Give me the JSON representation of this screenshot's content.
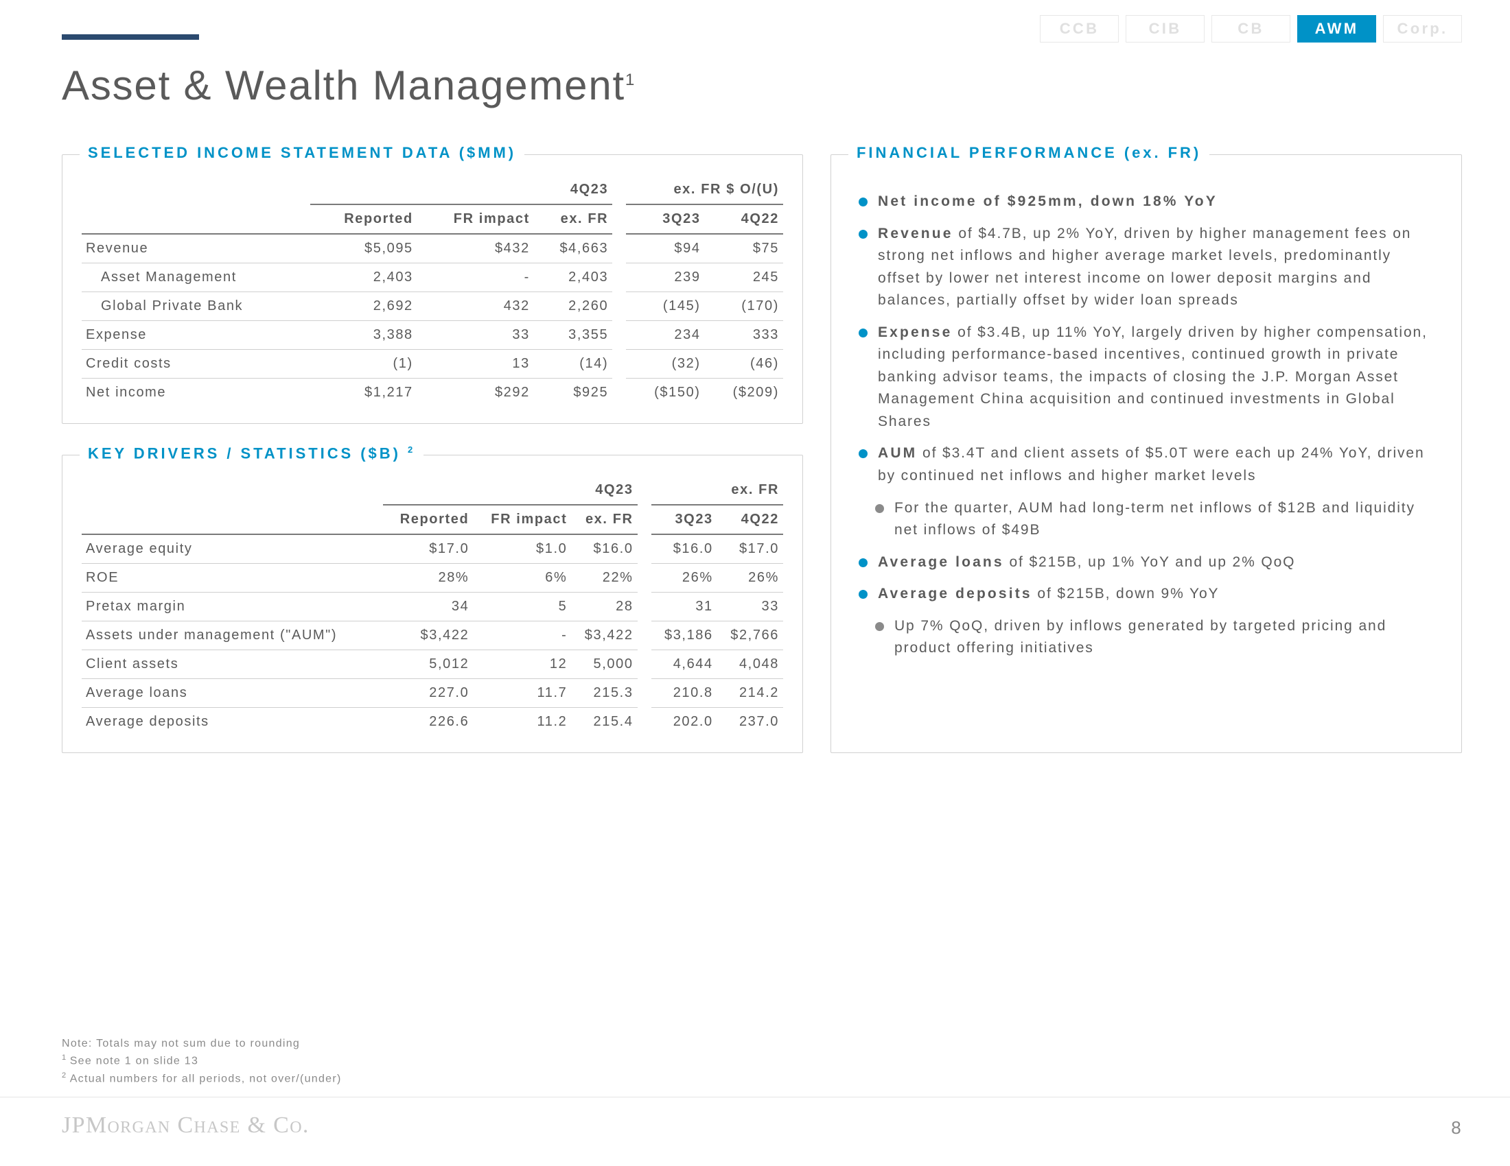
{
  "nav": {
    "tabs": [
      "CCB",
      "CIB",
      "CB",
      "AWM",
      "Corp."
    ],
    "activeIndex": 3
  },
  "title": "Asset & Wealth Management",
  "title_sup": "1",
  "income_panel": {
    "title": "SELECTED INCOME STATEMENT DATA ($MM)",
    "super_headers": {
      "h1": "4Q23",
      "h2": "ex. FR $ O/(U)"
    },
    "col_headers": [
      "Reported",
      "FR impact",
      "ex. FR",
      "3Q23",
      "4Q22"
    ],
    "rows": [
      {
        "label": "Revenue",
        "indent": false,
        "values": [
          "$5,095",
          "$432",
          "$4,663",
          "$94",
          "$75"
        ]
      },
      {
        "label": "Asset Management",
        "indent": true,
        "values": [
          "2,403",
          "-",
          "2,403",
          "239",
          "245"
        ]
      },
      {
        "label": "Global Private Bank",
        "indent": true,
        "values": [
          "2,692",
          "432",
          "2,260",
          "(145)",
          "(170)"
        ]
      },
      {
        "label": "Expense",
        "indent": false,
        "values": [
          "3,388",
          "33",
          "3,355",
          "234",
          "333"
        ]
      },
      {
        "label": "Credit costs",
        "indent": false,
        "values": [
          "(1)",
          "13",
          "(14)",
          "(32)",
          "(46)"
        ]
      },
      {
        "label": "Net income",
        "indent": false,
        "values": [
          "$1,217",
          "$292",
          "$925",
          "($150)",
          "($209)"
        ]
      }
    ]
  },
  "drivers_panel": {
    "title": "KEY DRIVERS / STATISTICS ($B)",
    "title_sup": "2",
    "super_headers": {
      "h1": "4Q23",
      "h2": "ex. FR"
    },
    "col_headers": [
      "Reported",
      "FR impact",
      "ex. FR",
      "3Q23",
      "4Q22"
    ],
    "rows": [
      {
        "label": "Average equity",
        "values": [
          "$17.0",
          "$1.0",
          "$16.0",
          "$16.0",
          "$17.0"
        ]
      },
      {
        "label": "ROE",
        "values": [
          "28%",
          "6%",
          "22%",
          "26%",
          "26%"
        ]
      },
      {
        "label": "Pretax margin",
        "values": [
          "34",
          "5",
          "28",
          "31",
          "33"
        ]
      },
      {
        "label": "Assets under management (\"AUM\")",
        "values": [
          "$3,422",
          "-",
          "$3,422",
          "$3,186",
          "$2,766"
        ]
      },
      {
        "label": "Client assets",
        "values": [
          "5,012",
          "12",
          "5,000",
          "4,644",
          "4,048"
        ]
      },
      {
        "label": "Average loans",
        "values": [
          "227.0",
          "11.7",
          "215.3",
          "210.8",
          "214.2"
        ]
      },
      {
        "label": "Average deposits",
        "values": [
          "226.6",
          "11.2",
          "215.4",
          "202.0",
          "237.0"
        ]
      }
    ]
  },
  "perf_panel": {
    "title": "FINANCIAL PERFORMANCE (ex. FR)",
    "bullets": [
      {
        "level": 0,
        "bold": "Net income of $925mm, down 18% YoY",
        "text": ""
      },
      {
        "level": 0,
        "bold": "Revenue",
        "text": " of $4.7B, up 2% YoY, driven by higher management fees on strong net inflows and higher average market levels, predominantly offset by lower net interest income on lower deposit margins and balances, partially offset by wider loan spreads"
      },
      {
        "level": 0,
        "bold": "Expense",
        "text": " of $3.4B, up 11% YoY, largely driven by higher compensation, including performance-based incentives, continued growth in private banking advisor teams, the impacts of closing the J.P. Morgan Asset Management China acquisition and continued investments in Global Shares"
      },
      {
        "level": 0,
        "bold": "AUM",
        "text": " of $3.4T and client assets of $5.0T were each up 24% YoY, driven by continued net inflows and higher market levels"
      },
      {
        "level": 1,
        "bold": "",
        "text": "For the quarter, AUM had long-term net inflows of $12B and liquidity net inflows of $49B"
      },
      {
        "level": 0,
        "bold": "Average loans",
        "text": " of $215B, up 1% YoY and up 2% QoQ"
      },
      {
        "level": 0,
        "bold": "Average deposits",
        "text": " of $215B, down 9% YoY"
      },
      {
        "level": 1,
        "bold": "",
        "text": "Up 7% QoQ, driven by inflows generated by targeted pricing and product offering initiatives"
      }
    ]
  },
  "footnotes": [
    "Note: Totals may not sum due to rounding",
    "See note 1 on slide 13",
    "Actual numbers for all periods, not over/(under)"
  ],
  "footnote_sups": [
    "",
    "1 ",
    "2 "
  ],
  "footer_logo": "JPMORGAN CHASE & CO.",
  "page_number": "8"
}
